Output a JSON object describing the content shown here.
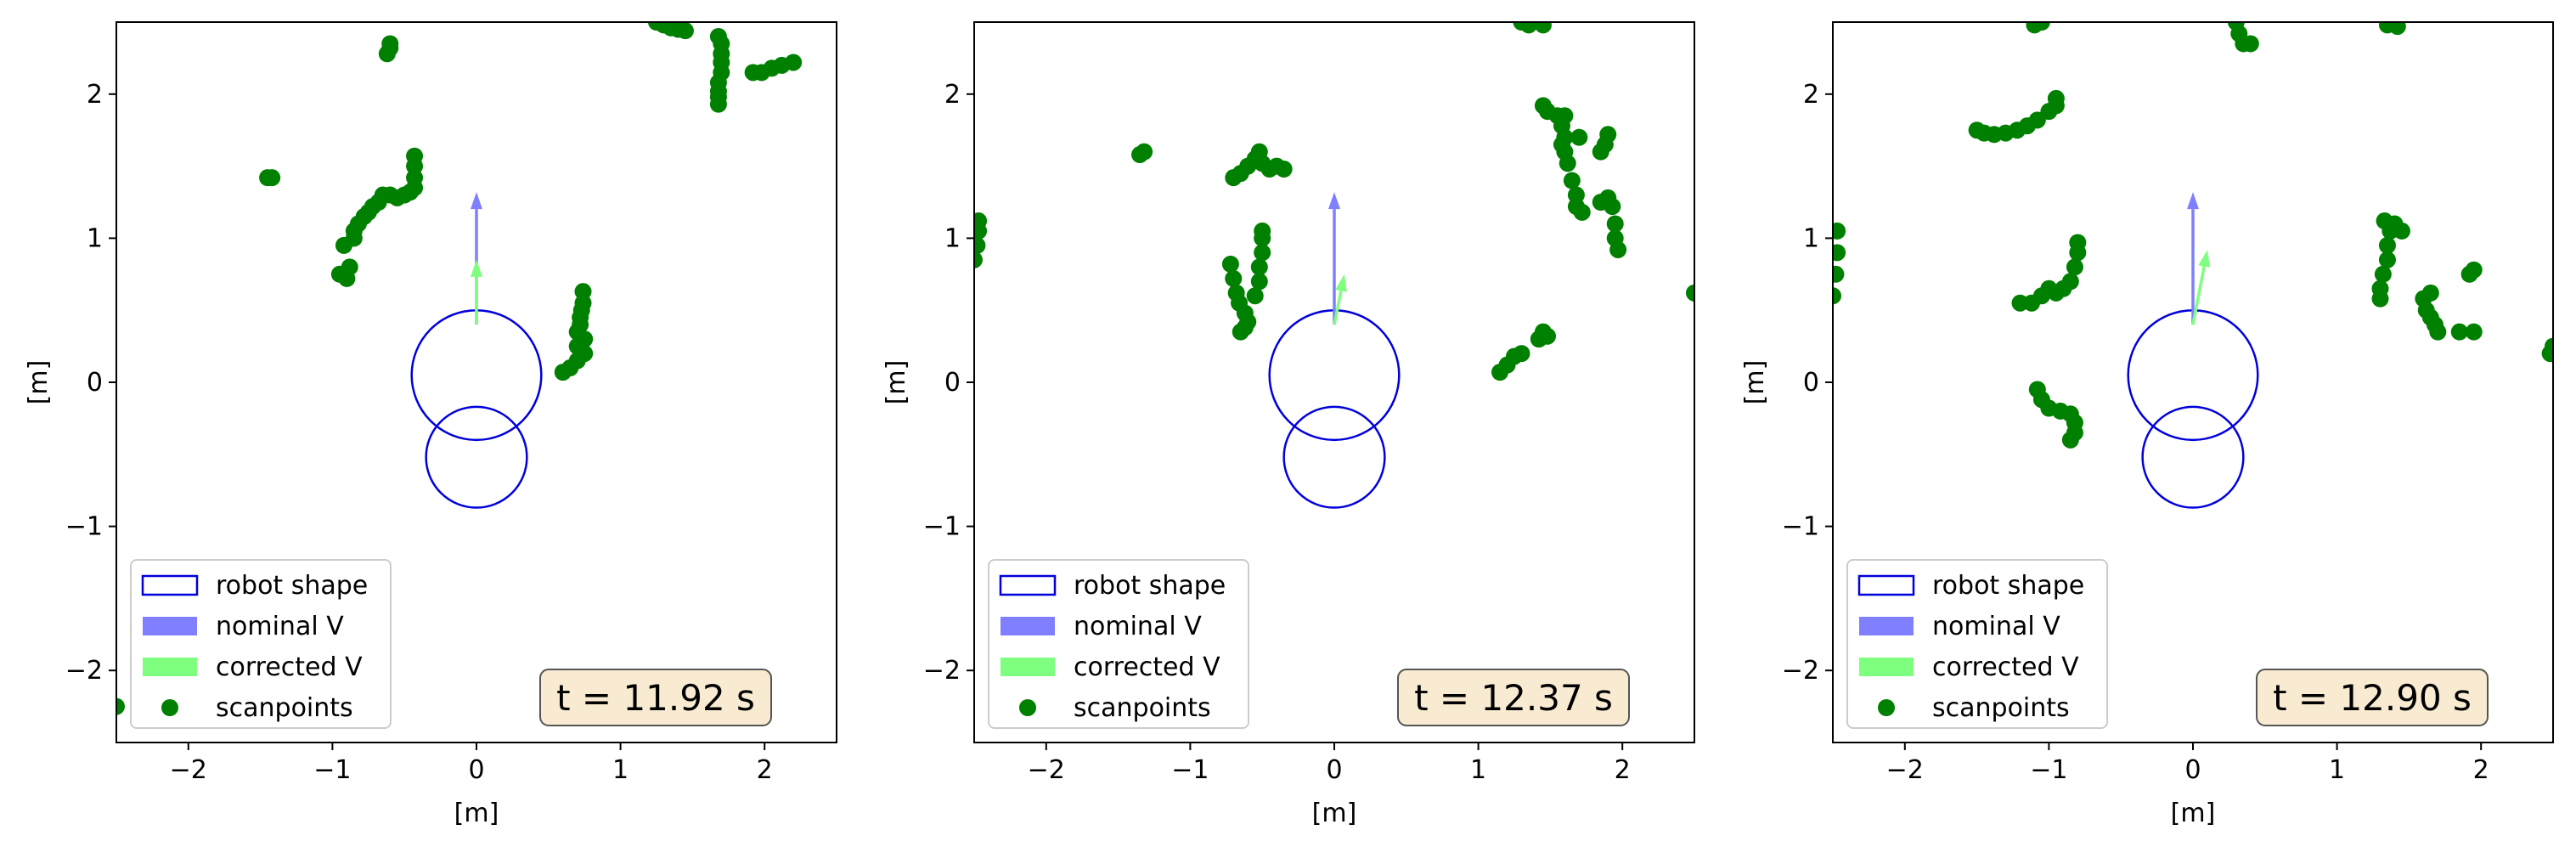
{
  "chart_data": [
    {
      "type": "scatter",
      "xlabel": "[m]",
      "ylabel": "[m]",
      "xlim": [
        -2.5,
        2.5
      ],
      "ylim": [
        -2.5,
        2.5
      ],
      "xticks": [
        -2,
        -1,
        0,
        1,
        2
      ],
      "yticks": [
        -2,
        -1,
        0,
        1,
        2
      ],
      "xtick_labels": [
        "−2",
        "−1",
        "0",
        "1",
        "2"
      ],
      "ytick_labels": [
        "−2",
        "−1",
        "0",
        "1",
        "2"
      ],
      "grid": false,
      "legend": {
        "placement": "lower-left",
        "entries": [
          "robot shape",
          "nominal V",
          "corrected V",
          "scanpoints"
        ]
      },
      "time_label": "t = 11.92 s",
      "robot_shape": [
        {
          "cx": 0.0,
          "cy": 0.05,
          "r": 0.45
        },
        {
          "cx": 0.0,
          "cy": -0.52,
          "r": 0.35
        }
      ],
      "nominal_v": {
        "x0": 0.0,
        "y0": 0.4,
        "x1": 0.0,
        "y1": 1.32
      },
      "corrected_v": {
        "x0": 0.0,
        "y0": 0.4,
        "x1": 0.0,
        "y1": 0.85
      },
      "scanpoints": [
        [
          -1.45,
          1.42
        ],
        [
          -1.42,
          1.42
        ],
        [
          -0.6,
          2.35
        ],
        [
          -0.62,
          2.28
        ],
        [
          -0.6,
          2.32
        ],
        [
          -0.95,
          0.75
        ],
        [
          -0.9,
          0.72
        ],
        [
          -0.88,
          0.8
        ],
        [
          -0.92,
          0.95
        ],
        [
          -0.85,
          1.0
        ],
        [
          -0.85,
          1.05
        ],
        [
          -0.82,
          1.1
        ],
        [
          -0.78,
          1.15
        ],
        [
          -0.75,
          1.18
        ],
        [
          -0.72,
          1.22
        ],
        [
          -0.68,
          1.25
        ],
        [
          -0.65,
          1.3
        ],
        [
          -0.6,
          1.3
        ],
        [
          -0.55,
          1.28
        ],
        [
          -0.5,
          1.3
        ],
        [
          -0.46,
          1.32
        ],
        [
          -0.43,
          1.35
        ],
        [
          -0.43,
          1.42
        ],
        [
          -0.43,
          1.5
        ],
        [
          -0.43,
          1.57
        ],
        [
          0.6,
          0.07
        ],
        [
          0.65,
          0.1
        ],
        [
          0.7,
          0.15
        ],
        [
          0.7,
          0.25
        ],
        [
          0.7,
          0.35
        ],
        [
          0.72,
          0.4
        ],
        [
          0.72,
          0.45
        ],
        [
          0.73,
          0.5
        ],
        [
          0.74,
          0.55
        ],
        [
          0.74,
          0.63
        ],
        [
          0.75,
          0.3
        ],
        [
          0.75,
          0.2
        ],
        [
          1.25,
          2.5
        ],
        [
          1.3,
          2.48
        ],
        [
          1.35,
          2.46
        ],
        [
          1.4,
          2.45
        ],
        [
          1.45,
          2.44
        ],
        [
          1.68,
          2.4
        ],
        [
          1.7,
          2.35
        ],
        [
          1.7,
          2.28
        ],
        [
          1.7,
          2.22
        ],
        [
          1.7,
          2.15
        ],
        [
          1.68,
          2.08
        ],
        [
          1.68,
          2.02
        ],
        [
          1.68,
          1.98
        ],
        [
          1.68,
          1.93
        ],
        [
          1.92,
          2.15
        ],
        [
          1.98,
          2.15
        ],
        [
          2.05,
          2.18
        ],
        [
          2.12,
          2.2
        ],
        [
          2.2,
          2.22
        ],
        [
          -2.5,
          -2.25
        ]
      ]
    },
    {
      "type": "scatter",
      "xlabel": "[m]",
      "ylabel": "[m]",
      "xlim": [
        -2.5,
        2.5
      ],
      "ylim": [
        -2.5,
        2.5
      ],
      "xticks": [
        -2,
        -1,
        0,
        1,
        2
      ],
      "yticks": [
        -2,
        -1,
        0,
        1,
        2
      ],
      "xtick_labels": [
        "−2",
        "−1",
        "0",
        "1",
        "2"
      ],
      "ytick_labels": [
        "−2",
        "−1",
        "0",
        "1",
        "2"
      ],
      "grid": false,
      "legend": {
        "placement": "lower-left",
        "entries": [
          "robot shape",
          "nominal V",
          "corrected V",
          "scanpoints"
        ]
      },
      "time_label": "t = 12.37 s",
      "robot_shape": [
        {
          "cx": 0.0,
          "cy": 0.05,
          "r": 0.45
        },
        {
          "cx": 0.0,
          "cy": -0.52,
          "r": 0.35
        }
      ],
      "nominal_v": {
        "x0": 0.0,
        "y0": 0.4,
        "x1": 0.0,
        "y1": 1.32
      },
      "corrected_v": {
        "x0": 0.0,
        "y0": 0.4,
        "x1": 0.07,
        "y1": 0.75
      },
      "scanpoints": [
        [
          -2.5,
          0.85
        ],
        [
          -2.48,
          0.95
        ],
        [
          -2.47,
          1.05
        ],
        [
          -2.47,
          1.12
        ],
        [
          -1.35,
          1.58
        ],
        [
          -1.32,
          1.6
        ],
        [
          -0.7,
          1.42
        ],
        [
          -0.65,
          1.45
        ],
        [
          -0.6,
          1.5
        ],
        [
          -0.55,
          1.55
        ],
        [
          -0.52,
          1.6
        ],
        [
          -0.5,
          1.52
        ],
        [
          -0.45,
          1.48
        ],
        [
          -0.4,
          1.5
        ],
        [
          -0.35,
          1.48
        ],
        [
          -0.72,
          0.82
        ],
        [
          -0.7,
          0.72
        ],
        [
          -0.68,
          0.62
        ],
        [
          -0.66,
          0.55
        ],
        [
          -0.62,
          0.48
        ],
        [
          -0.6,
          0.42
        ],
        [
          -0.62,
          0.38
        ],
        [
          -0.65,
          0.35
        ],
        [
          -0.55,
          0.6
        ],
        [
          -0.52,
          0.7
        ],
        [
          -0.52,
          0.8
        ],
        [
          -0.5,
          0.9
        ],
        [
          -0.5,
          1.0
        ],
        [
          -0.5,
          1.05
        ],
        [
          1.15,
          0.07
        ],
        [
          1.2,
          0.12
        ],
        [
          1.25,
          0.18
        ],
        [
          1.3,
          0.2
        ],
        [
          1.42,
          0.3
        ],
        [
          1.45,
          0.35
        ],
        [
          1.48,
          0.32
        ],
        [
          1.3,
          2.5
        ],
        [
          1.35,
          2.48
        ],
        [
          1.45,
          2.48
        ],
        [
          1.45,
          1.92
        ],
        [
          1.48,
          1.88
        ],
        [
          1.55,
          1.85
        ],
        [
          1.6,
          1.85
        ],
        [
          1.58,
          1.78
        ],
        [
          1.6,
          1.7
        ],
        [
          1.58,
          1.65
        ],
        [
          1.6,
          1.6
        ],
        [
          1.62,
          1.52
        ],
        [
          1.7,
          1.7
        ],
        [
          1.65,
          1.4
        ],
        [
          1.68,
          1.3
        ],
        [
          1.68,
          1.22
        ],
        [
          1.72,
          1.18
        ],
        [
          1.85,
          1.6
        ],
        [
          1.88,
          1.65
        ],
        [
          1.9,
          1.72
        ],
        [
          1.85,
          1.25
        ],
        [
          1.9,
          1.28
        ],
        [
          1.93,
          1.22
        ],
        [
          1.95,
          1.1
        ],
        [
          1.95,
          1.0
        ],
        [
          1.97,
          0.92
        ],
        [
          2.5,
          0.62
        ]
      ]
    },
    {
      "type": "scatter",
      "xlabel": "[m]",
      "ylabel": "[m]",
      "xlim": [
        -2.5,
        2.5
      ],
      "ylim": [
        -2.5,
        2.5
      ],
      "xticks": [
        -2,
        -1,
        0,
        1,
        2
      ],
      "yticks": [
        -2,
        -1,
        0,
        1,
        2
      ],
      "xtick_labels": [
        "−2",
        "−1",
        "0",
        "1",
        "2"
      ],
      "ytick_labels": [
        "−2",
        "−1",
        "0",
        "1",
        "2"
      ],
      "grid": false,
      "legend": {
        "placement": "lower-left",
        "entries": [
          "robot shape",
          "nominal V",
          "corrected V",
          "scanpoints"
        ]
      },
      "time_label": "t = 12.90 s",
      "robot_shape": [
        {
          "cx": 0.0,
          "cy": 0.05,
          "r": 0.45
        },
        {
          "cx": 0.0,
          "cy": -0.52,
          "r": 0.35
        }
      ],
      "nominal_v": {
        "x0": 0.0,
        "y0": 0.4,
        "x1": 0.0,
        "y1": 1.32
      },
      "corrected_v": {
        "x0": 0.0,
        "y0": 0.4,
        "x1": 0.1,
        "y1": 0.92
      },
      "scanpoints": [
        [
          -2.5,
          0.6
        ],
        [
          -2.48,
          0.75
        ],
        [
          -2.47,
          0.9
        ],
        [
          -2.47,
          1.05
        ],
        [
          -1.1,
          2.48
        ],
        [
          -1.05,
          2.5
        ],
        [
          -1.5,
          1.75
        ],
        [
          -1.45,
          1.73
        ],
        [
          -1.38,
          1.72
        ],
        [
          -1.3,
          1.73
        ],
        [
          -1.22,
          1.75
        ],
        [
          -1.15,
          1.78
        ],
        [
          -1.08,
          1.82
        ],
        [
          -1.0,
          1.88
        ],
        [
          -0.95,
          1.92
        ],
        [
          -0.95,
          1.97
        ],
        [
          -1.2,
          0.55
        ],
        [
          -1.12,
          0.55
        ],
        [
          -1.05,
          0.6
        ],
        [
          -1.0,
          0.65
        ],
        [
          -0.95,
          0.62
        ],
        [
          -0.9,
          0.65
        ],
        [
          -0.85,
          0.7
        ],
        [
          -0.82,
          0.8
        ],
        [
          -0.8,
          0.9
        ],
        [
          -0.8,
          0.97
        ],
        [
          -1.08,
          -0.05
        ],
        [
          -1.05,
          -0.12
        ],
        [
          -1.0,
          -0.18
        ],
        [
          -0.92,
          -0.2
        ],
        [
          -0.85,
          -0.22
        ],
        [
          -0.82,
          -0.28
        ],
        [
          -0.82,
          -0.35
        ],
        [
          -0.85,
          -0.4
        ],
        [
          0.3,
          2.5
        ],
        [
          0.32,
          2.42
        ],
        [
          0.35,
          2.35
        ],
        [
          0.4,
          2.35
        ],
        [
          1.35,
          2.48
        ],
        [
          1.42,
          2.47
        ],
        [
          1.3,
          0.58
        ],
        [
          1.3,
          0.65
        ],
        [
          1.32,
          0.75
        ],
        [
          1.35,
          0.85
        ],
        [
          1.35,
          0.95
        ],
        [
          1.37,
          1.05
        ],
        [
          1.33,
          1.12
        ],
        [
          1.4,
          1.1
        ],
        [
          1.45,
          1.05
        ],
        [
          1.6,
          0.58
        ],
        [
          1.62,
          0.5
        ],
        [
          1.65,
          0.45
        ],
        [
          1.68,
          0.4
        ],
        [
          1.7,
          0.35
        ],
        [
          1.65,
          0.62
        ],
        [
          1.85,
          0.35
        ],
        [
          1.95,
          0.35
        ],
        [
          1.92,
          0.75
        ],
        [
          1.95,
          0.78
        ],
        [
          2.5,
          0.25
        ],
        [
          2.48,
          0.2
        ]
      ]
    }
  ]
}
